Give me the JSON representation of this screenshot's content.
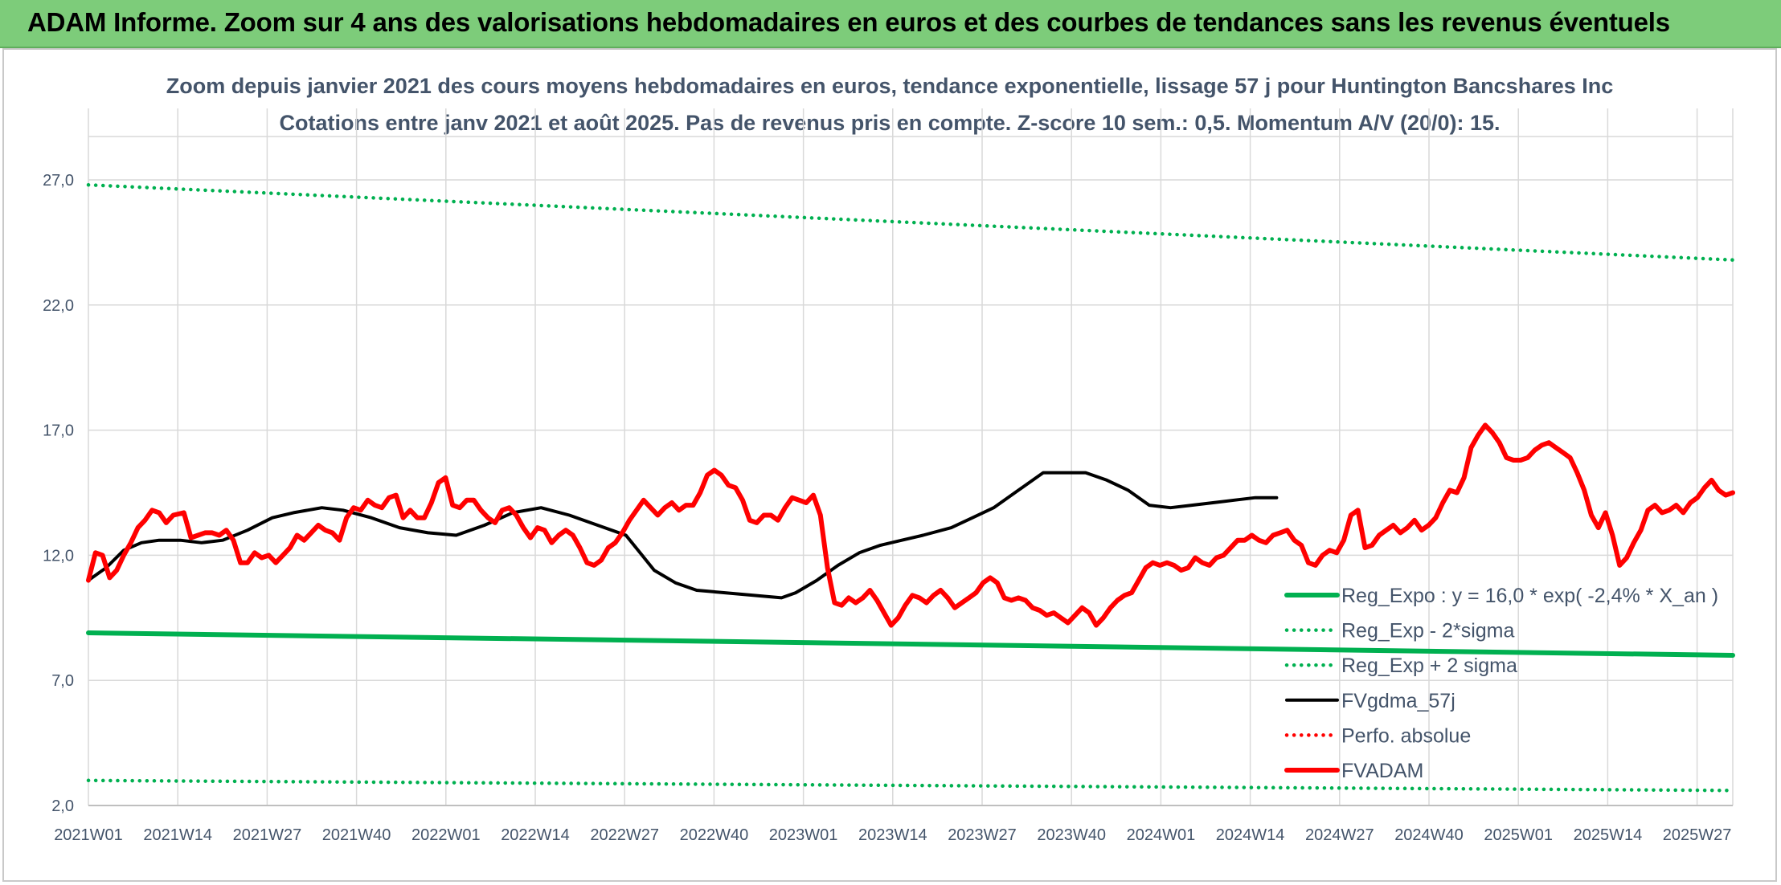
{
  "banner": {
    "title": "ADAM Informe. Zoom sur 4 ans des valorisations hebdomadaires en euros et des courbes de tendances sans les revenus éventuels"
  },
  "chart_data": {
    "type": "line",
    "title_line1": "Zoom depuis janvier 2021 des cours moyens hebdomadaires en euros, tendance exponentielle, lissage 57 j pour Huntington Bancshares Inc",
    "title_line2": "Cotations entre janv 2021 et août 2025. Pas de revenus pris en compte. Z-score 10 sem.: 0,5. Momentum A/V (20/0): 15.",
    "x_tick_labels": [
      "2021W01",
      "2021W14",
      "2021W27",
      "2021W40",
      "2022W01",
      "2022W14",
      "2022W27",
      "2022W40",
      "2023W01",
      "2023W14",
      "2023W27",
      "2023W40",
      "2024W01",
      "2024W14",
      "2024W27",
      "2024W40",
      "2025W01",
      "2025W14",
      "2025W27"
    ],
    "y_tick_labels": [
      "2,0",
      "7,0",
      "12,0",
      "17,0",
      "22,0",
      "27,0"
    ],
    "y_ticks": [
      2,
      7,
      12,
      17,
      22,
      27
    ],
    "ylim": [
      2,
      28.5
    ],
    "n_weeks": 239,
    "grid": true,
    "legend_position": "bottom-right",
    "colors": {
      "reg_expo": "#00b050",
      "reg_minus": "#00b050",
      "reg_plus": "#00b050",
      "fvgdma": "#000000",
      "perfo": "#ff0000",
      "fvadam": "#ff0000",
      "grid": "#d9d9d9",
      "axis_text": "#44546a"
    },
    "series": [
      {
        "key": "reg_expo",
        "name": "Reg_Expo : y = 16,0 * exp( -2,4% *  X_an )",
        "style": "solid",
        "width": 6,
        "points": [
          [
            0,
            8.9
          ],
          [
            238,
            8.0
          ]
        ]
      },
      {
        "key": "reg_minus",
        "name": "Reg_Exp - 2*sigma",
        "style": "dotted",
        "width": 4.5,
        "points": [
          [
            0,
            3.0
          ],
          [
            238,
            2.6
          ]
        ]
      },
      {
        "key": "reg_plus",
        "name": "Reg_Exp + 2 sigma",
        "style": "dotted",
        "width": 4.5,
        "points": [
          [
            0,
            26.8
          ],
          [
            238,
            23.8
          ]
        ]
      },
      {
        "key": "fvgdma",
        "name": "FVgdma_57j",
        "style": "solid",
        "width": 4,
        "points": [
          [
            0,
            11.0
          ],
          [
            5,
            11.5
          ],
          [
            10,
            12.2
          ],
          [
            15,
            12.5
          ],
          [
            20,
            12.6
          ],
          [
            26,
            12.6
          ],
          [
            32,
            12.5
          ],
          [
            38,
            12.6
          ],
          [
            45,
            13.0
          ],
          [
            52,
            13.5
          ],
          [
            58,
            13.7
          ],
          [
            66,
            13.9
          ],
          [
            72,
            13.8
          ],
          [
            80,
            13.5
          ],
          [
            88,
            13.1
          ],
          [
            96,
            12.9
          ],
          [
            104,
            12.8
          ],
          [
            112,
            13.2
          ],
          [
            120,
            13.7
          ],
          [
            128,
            13.9
          ],
          [
            136,
            13.6
          ],
          [
            144,
            13.2
          ],
          [
            152,
            12.8
          ],
          [
            156,
            12.1
          ],
          [
            160,
            11.4
          ],
          [
            166,
            10.9
          ],
          [
            172,
            10.6
          ],
          [
            180,
            10.5
          ],
          [
            188,
            10.4
          ],
          [
            196,
            10.3
          ],
          [
            200,
            10.5
          ],
          [
            206,
            11.0
          ],
          [
            212,
            11.6
          ],
          [
            218,
            12.1
          ],
          [
            224,
            12.4
          ],
          [
            230,
            12.6
          ],
          [
            236,
            12.8
          ],
          [
            244,
            13.1
          ],
          [
            250,
            13.5
          ],
          [
            256,
            13.9
          ],
          [
            262,
            14.5
          ],
          [
            270,
            15.3
          ],
          [
            276,
            15.3
          ],
          [
            282,
            15.3
          ],
          [
            288,
            15.0
          ],
          [
            294,
            14.6
          ],
          [
            300,
            14.0
          ],
          [
            306,
            13.9
          ],
          [
            312,
            14.0
          ],
          [
            318,
            14.1
          ],
          [
            324,
            14.2
          ],
          [
            330,
            14.3
          ],
          [
            336,
            14.3
          ]
        ]
      },
      {
        "key": "perfo",
        "name": "Perfo. absolue",
        "style": "dotted",
        "width": 4.5,
        "points": []
      },
      {
        "key": "fvadam",
        "name": "FVADAM",
        "style": "solid",
        "width": 6,
        "points": [
          [
            0,
            11.0
          ],
          [
            2,
            12.1
          ],
          [
            4,
            12.0
          ],
          [
            6,
            11.1
          ],
          [
            8,
            11.4
          ],
          [
            10,
            12.0
          ],
          [
            12,
            12.5
          ],
          [
            14,
            13.1
          ],
          [
            16,
            13.4
          ],
          [
            18,
            13.8
          ],
          [
            20,
            13.7
          ],
          [
            22,
            13.3
          ],
          [
            24,
            13.6
          ],
          [
            27,
            13.7
          ],
          [
            29,
            12.7
          ],
          [
            31,
            12.8
          ],
          [
            33,
            12.9
          ],
          [
            35,
            12.9
          ],
          [
            37,
            12.8
          ],
          [
            39,
            13.0
          ],
          [
            41,
            12.6
          ],
          [
            43,
            11.7
          ],
          [
            45,
            11.7
          ],
          [
            47,
            12.1
          ],
          [
            49,
            11.9
          ],
          [
            51,
            12.0
          ],
          [
            53,
            11.7
          ],
          [
            55,
            12.0
          ],
          [
            57,
            12.3
          ],
          [
            59,
            12.8
          ],
          [
            61,
            12.6
          ],
          [
            63,
            12.9
          ],
          [
            65,
            13.2
          ],
          [
            67,
            13.0
          ],
          [
            69,
            12.9
          ],
          [
            71,
            12.6
          ],
          [
            73,
            13.5
          ],
          [
            75,
            13.9
          ],
          [
            77,
            13.8
          ],
          [
            79,
            14.2
          ],
          [
            81,
            14.0
          ],
          [
            83,
            13.9
          ],
          [
            85,
            14.3
          ],
          [
            87,
            14.4
          ],
          [
            89,
            13.5
          ],
          [
            91,
            13.8
          ],
          [
            93,
            13.5
          ],
          [
            95,
            13.5
          ],
          [
            97,
            14.1
          ],
          [
            99,
            14.9
          ],
          [
            101,
            15.1
          ],
          [
            103,
            14.0
          ],
          [
            105,
            13.9
          ],
          [
            107,
            14.2
          ],
          [
            109,
            14.2
          ],
          [
            111,
            13.8
          ],
          [
            113,
            13.5
          ],
          [
            115,
            13.3
          ],
          [
            117,
            13.8
          ],
          [
            119,
            13.9
          ],
          [
            121,
            13.6
          ],
          [
            123,
            13.1
          ],
          [
            125,
            12.7
          ],
          [
            127,
            13.1
          ],
          [
            129,
            13.0
          ],
          [
            131,
            12.5
          ],
          [
            133,
            12.8
          ],
          [
            135,
            13.0
          ],
          [
            137,
            12.8
          ],
          [
            139,
            12.3
          ],
          [
            141,
            11.7
          ],
          [
            143,
            11.6
          ],
          [
            145,
            11.8
          ],
          [
            147,
            12.3
          ],
          [
            149,
            12.5
          ],
          [
            151,
            12.9
          ],
          [
            153,
            13.4
          ],
          [
            155,
            13.8
          ],
          [
            157,
            14.2
          ],
          [
            159,
            13.9
          ],
          [
            161,
            13.6
          ],
          [
            163,
            13.9
          ],
          [
            165,
            14.1
          ],
          [
            167,
            13.8
          ],
          [
            169,
            14.0
          ],
          [
            171,
            14.0
          ],
          [
            173,
            14.5
          ],
          [
            175,
            15.2
          ],
          [
            177,
            15.4
          ],
          [
            179,
            15.2
          ],
          [
            181,
            14.8
          ],
          [
            183,
            14.7
          ],
          [
            185,
            14.2
          ],
          [
            187,
            13.4
          ],
          [
            189,
            13.3
          ],
          [
            191,
            13.6
          ],
          [
            193,
            13.6
          ],
          [
            195,
            13.4
          ],
          [
            197,
            13.9
          ],
          [
            199,
            14.3
          ],
          [
            201,
            14.2
          ],
          [
            203,
            14.1
          ],
          [
            205,
            14.4
          ],
          [
            207,
            13.6
          ],
          [
            209,
            11.5
          ],
          [
            211,
            10.1
          ],
          [
            213,
            10.0
          ],
          [
            215,
            10.3
          ],
          [
            217,
            10.1
          ],
          [
            219,
            10.3
          ],
          [
            221,
            10.6
          ],
          [
            223,
            10.2
          ],
          [
            225,
            9.7
          ],
          [
            227,
            9.2
          ],
          [
            229,
            9.5
          ],
          [
            231,
            10.0
          ],
          [
            233,
            10.4
          ],
          [
            235,
            10.3
          ],
          [
            237,
            10.1
          ],
          [
            239,
            10.4
          ],
          [
            241,
            10.6
          ],
          [
            243,
            10.3
          ],
          [
            245,
            9.9
          ],
          [
            247,
            10.1
          ],
          [
            249,
            10.3
          ],
          [
            251,
            10.5
          ],
          [
            253,
            10.9
          ],
          [
            255,
            11.1
          ],
          [
            257,
            10.9
          ],
          [
            259,
            10.3
          ],
          [
            261,
            10.2
          ],
          [
            263,
            10.3
          ],
          [
            265,
            10.2
          ],
          [
            267,
            9.9
          ],
          [
            269,
            9.8
          ],
          [
            271,
            9.6
          ],
          [
            273,
            9.7
          ],
          [
            275,
            9.5
          ],
          [
            277,
            9.3
          ],
          [
            279,
            9.6
          ],
          [
            281,
            9.9
          ],
          [
            283,
            9.7
          ],
          [
            285,
            9.2
          ],
          [
            287,
            9.5
          ],
          [
            289,
            9.9
          ],
          [
            291,
            10.2
          ],
          [
            293,
            10.4
          ],
          [
            295,
            10.5
          ],
          [
            297,
            11.0
          ],
          [
            299,
            11.5
          ],
          [
            301,
            11.7
          ],
          [
            303,
            11.6
          ],
          [
            305,
            11.7
          ],
          [
            307,
            11.6
          ],
          [
            309,
            11.4
          ],
          [
            311,
            11.5
          ],
          [
            313,
            11.9
          ],
          [
            315,
            11.7
          ],
          [
            317,
            11.6
          ],
          [
            319,
            11.9
          ],
          [
            321,
            12.0
          ],
          [
            323,
            12.3
          ],
          [
            325,
            12.6
          ],
          [
            327,
            12.6
          ],
          [
            329,
            12.8
          ],
          [
            331,
            12.6
          ],
          [
            333,
            12.5
          ],
          [
            335,
            12.8
          ],
          [
            337,
            12.9
          ],
          [
            339,
            13.0
          ],
          [
            341,
            12.6
          ],
          [
            343,
            12.4
          ],
          [
            345,
            11.7
          ],
          [
            347,
            11.6
          ],
          [
            349,
            12.0
          ],
          [
            351,
            12.2
          ],
          [
            353,
            12.1
          ],
          [
            355,
            12.6
          ],
          [
            357,
            13.6
          ],
          [
            359,
            13.8
          ],
          [
            361,
            12.3
          ],
          [
            363,
            12.4
          ],
          [
            365,
            12.8
          ],
          [
            367,
            13.0
          ],
          [
            369,
            13.2
          ],
          [
            371,
            12.9
          ],
          [
            373,
            13.1
          ],
          [
            375,
            13.4
          ],
          [
            377,
            13.0
          ],
          [
            379,
            13.2
          ],
          [
            381,
            13.5
          ],
          [
            383,
            14.1
          ],
          [
            385,
            14.6
          ],
          [
            387,
            14.5
          ],
          [
            389,
            15.1
          ],
          [
            391,
            16.3
          ],
          [
            393,
            16.8
          ],
          [
            395,
            17.2
          ],
          [
            397,
            16.9
          ],
          [
            399,
            16.5
          ],
          [
            401,
            15.9
          ],
          [
            403,
            15.8
          ],
          [
            405,
            15.8
          ],
          [
            407,
            15.9
          ],
          [
            409,
            16.2
          ],
          [
            411,
            16.4
          ],
          [
            413,
            16.5
          ],
          [
            415,
            16.3
          ],
          [
            417,
            16.1
          ],
          [
            419,
            15.9
          ],
          [
            421,
            15.3
          ],
          [
            423,
            14.6
          ],
          [
            425,
            13.6
          ],
          [
            427,
            13.1
          ],
          [
            429,
            13.7
          ],
          [
            431,
            12.8
          ],
          [
            433,
            11.6
          ],
          [
            435,
            11.9
          ],
          [
            437,
            12.5
          ],
          [
            439,
            13.0
          ],
          [
            441,
            13.8
          ],
          [
            443,
            14.0
          ],
          [
            445,
            13.7
          ],
          [
            447,
            13.8
          ],
          [
            449,
            14.0
          ],
          [
            451,
            13.7
          ],
          [
            453,
            14.1
          ],
          [
            455,
            14.3
          ],
          [
            457,
            14.7
          ],
          [
            459,
            15.0
          ],
          [
            461,
            14.6
          ],
          [
            463,
            14.4
          ],
          [
            465,
            14.5
          ]
        ]
      }
    ]
  }
}
